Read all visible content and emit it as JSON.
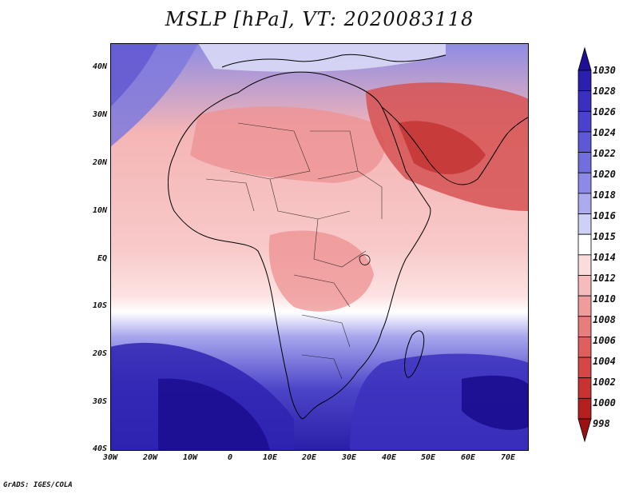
{
  "title": "MSLP [hPa], VT: 2020083118",
  "footer": "GrADS: IGES/COLA",
  "map": {
    "lat_labels": [
      "40N",
      "30N",
      "20N",
      "10N",
      "EQ",
      "10S",
      "20S",
      "30S",
      "40S"
    ],
    "lon_labels": [
      "30W",
      "20W",
      "10W",
      "0",
      "10E",
      "20E",
      "30E",
      "40E",
      "50E",
      "60E",
      "70E"
    ]
  },
  "legend": {
    "levels": [
      "1030",
      "1028",
      "1026",
      "1024",
      "1022",
      "1020",
      "1018",
      "1016",
      "1015",
      "1014",
      "1012",
      "1010",
      "1008",
      "1006",
      "1004",
      "1002",
      "1000",
      "998"
    ],
    "colors": [
      "#1e0f96",
      "#2b1fb0",
      "#3a2fc0",
      "#4a42cc",
      "#5d58d6",
      "#716fde",
      "#8c8ae6",
      "#ababee",
      "#cfd0f5",
      "#ffffff",
      "#fbdcdc",
      "#f6bcbc",
      "#f19c9c",
      "#e87d7d",
      "#df5f5f",
      "#d64646",
      "#c93232",
      "#b51f1f",
      "#9c1010"
    ]
  }
}
